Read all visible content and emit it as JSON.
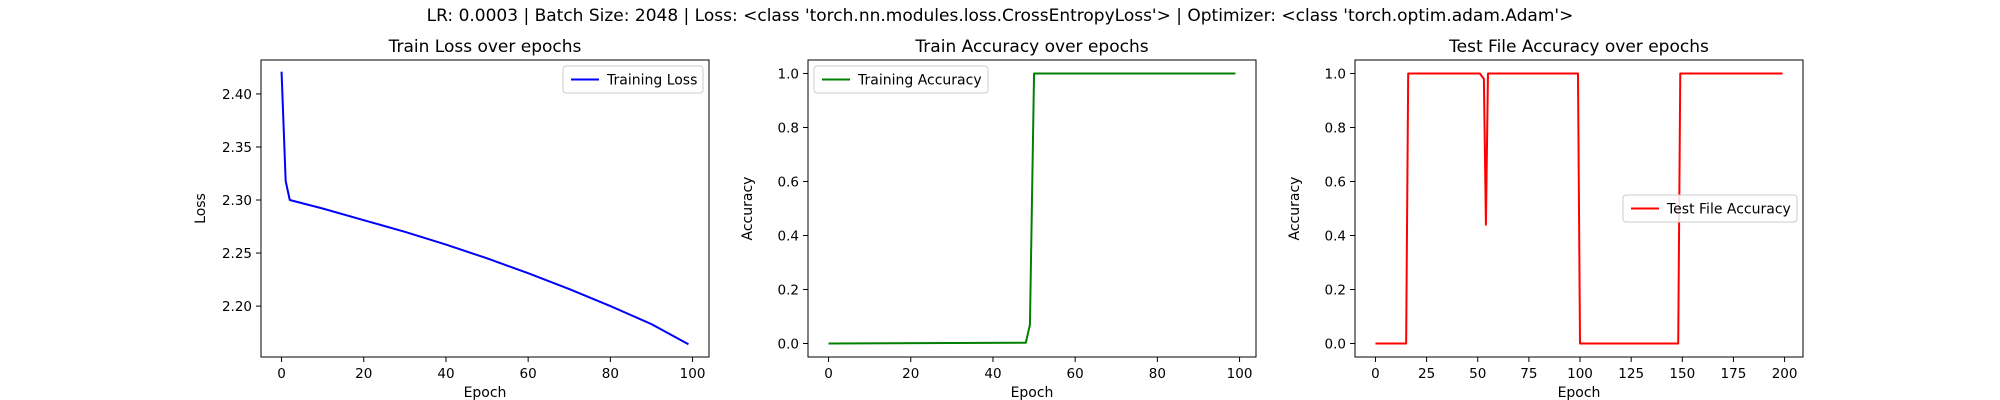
{
  "figure": {
    "suptitle": "LR: 0.0003 | Batch Size: 2048 | Loss: <class 'torch.nn.modules.loss.CrossEntropyLoss'> | Optimizer: <class 'torch.optim.adam.Adam'>"
  },
  "chart_data": [
    {
      "type": "line",
      "title": "Train Loss over epochs",
      "xlabel": "Epoch",
      "ylabel": "Loss",
      "xlim": [
        -5,
        104
      ],
      "ylim": [
        2.152,
        2.432
      ],
      "xticks": [
        0,
        20,
        40,
        60,
        80,
        100
      ],
      "yticks": [
        2.2,
        2.25,
        2.3,
        2.35,
        2.4
      ],
      "ytick_decimals": 2,
      "grid": false,
      "legend": "upper right",
      "series": [
        {
          "name": "Training Loss",
          "color": "#0000ff",
          "x": [
            0,
            1,
            2,
            10,
            20,
            30,
            40,
            50,
            60,
            70,
            80,
            90,
            99
          ],
          "y": [
            2.421,
            2.318,
            2.3,
            2.292,
            2.281,
            2.27,
            2.258,
            2.245,
            2.231,
            2.216,
            2.2,
            2.183,
            2.164
          ]
        }
      ]
    },
    {
      "type": "line",
      "title": "Train Accuracy over epochs",
      "xlabel": "Epoch",
      "ylabel": "Accuracy",
      "xlim": [
        -5,
        104
      ],
      "ylim": [
        -0.05,
        1.05
      ],
      "xticks": [
        0,
        20,
        40,
        60,
        80,
        100
      ],
      "yticks": [
        0.0,
        0.2,
        0.4,
        0.6,
        0.8,
        1.0
      ],
      "ytick_decimals": 1,
      "grid": false,
      "legend": "upper left",
      "series": [
        {
          "name": "Training Accuracy",
          "color": "#008000",
          "x": [
            0,
            48,
            49,
            50,
            99
          ],
          "y": [
            0.0,
            0.003,
            0.07,
            1.0,
            1.0
          ]
        }
      ]
    },
    {
      "type": "line",
      "title": "Test File Accuracy over epochs",
      "xlabel": "Epoch",
      "ylabel": "Accuracy",
      "xlim": [
        -10,
        209
      ],
      "ylim": [
        -0.05,
        1.05
      ],
      "xticks": [
        0,
        25,
        50,
        75,
        100,
        125,
        150,
        175,
        200
      ],
      "yticks": [
        0.0,
        0.2,
        0.4,
        0.6,
        0.8,
        1.0
      ],
      "ytick_decimals": 1,
      "grid": false,
      "legend": "center right",
      "series": [
        {
          "name": "Test File Accuracy",
          "color": "#ff0000",
          "x": [
            0,
            15,
            16,
            51,
            53,
            54,
            55,
            99,
            100,
            148,
            149,
            199
          ],
          "y": [
            0.0,
            0.0,
            1.0,
            1.0,
            0.98,
            0.44,
            1.0,
            1.0,
            0.0,
            0.0,
            1.0,
            1.0
          ]
        }
      ]
    }
  ]
}
